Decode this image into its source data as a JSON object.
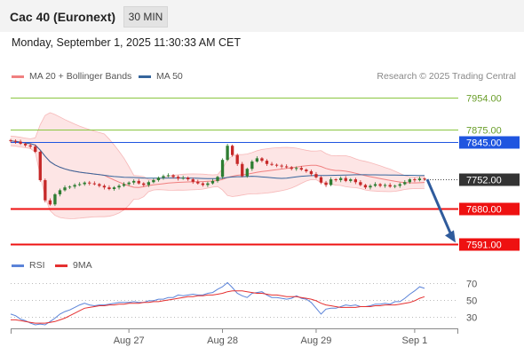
{
  "header": {
    "title": "Cac 40 (Euronext)",
    "interval": "30 MIN",
    "datetime": "Monday, September 1, 2025 11:30:33 AM CET"
  },
  "legend": {
    "ma20_label": "MA 20 + Bollinger Bands",
    "ma50_label": "MA 50",
    "credit": "Research © 2025 Trading Central"
  },
  "rsi_legend": {
    "rsi_label": "RSI",
    "ma9_label": "9MA"
  },
  "colors": {
    "bollinger": "#f08080",
    "bollinger_fill": "#fde0e0",
    "ma50": "#35659c",
    "candle_up": "#2e7d32",
    "candle_down": "#c62828",
    "resistance_green": "#8ac640",
    "resistance_blue": "#1f55e0",
    "support_red": "#ee1111",
    "last_price": "#333333",
    "rsi": "#5b83d8",
    "rsi_ma": "#e53030",
    "arrow": "#2f5b9c"
  },
  "chart_data": {
    "type": "candlestick",
    "price_range": [
      7570,
      7965
    ],
    "levels": [
      {
        "value": 7954.0,
        "label": "7954.00",
        "style": "green-line"
      },
      {
        "value": 7875.0,
        "label": "7875.00",
        "style": "green-line"
      },
      {
        "value": 7845.0,
        "label": "7845.00",
        "style": "blue-tag"
      },
      {
        "value": 7752.0,
        "label": "7752.00",
        "style": "last-price-dotted"
      },
      {
        "value": 7680.0,
        "label": "7680.00",
        "style": "red-tag"
      },
      {
        "value": 7591.0,
        "label": "7591.00",
        "style": "red-tag"
      }
    ],
    "x_ticks": [
      "Aug 27",
      "Aug 28",
      "Aug 29",
      "Sep 1"
    ],
    "x_tick_index": [
      24,
      43,
      62,
      82
    ],
    "n_bars": 85,
    "close": [
      7847,
      7845,
      7840,
      7836,
      7833,
      7820,
      7750,
      7700,
      7690,
      7715,
      7725,
      7732,
      7734,
      7738,
      7740,
      7744,
      7742,
      7740,
      7736,
      7732,
      7728,
      7732,
      7736,
      7740,
      7744,
      7748,
      7742,
      7738,
      7745,
      7750,
      7756,
      7760,
      7762,
      7758,
      7754,
      7756,
      7752,
      7746,
      7742,
      7738,
      7742,
      7748,
      7758,
      7800,
      7835,
      7812,
      7790,
      7760,
      7778,
      7796,
      7804,
      7798,
      7790,
      7788,
      7786,
      7784,
      7782,
      7778,
      7780,
      7776,
      7772,
      7765,
      7757,
      7744,
      7738,
      7752,
      7750,
      7755,
      7748,
      7752,
      7745,
      7738,
      7732,
      7736,
      7740,
      7736,
      7738,
      7734,
      7736,
      7740,
      7745,
      7752,
      7750,
      7754,
      7752
    ],
    "rsi": [
      33,
      31,
      27,
      25,
      22,
      20,
      21,
      20,
      24,
      28,
      33,
      36,
      38,
      41,
      44,
      46,
      44,
      43,
      44,
      44,
      45,
      46,
      47,
      47,
      47,
      48,
      47,
      47,
      49,
      49,
      51,
      51,
      53,
      53,
      56,
      55,
      56,
      57,
      56,
      56,
      58,
      59,
      63,
      66,
      71,
      65,
      58,
      55,
      53,
      58,
      59,
      60,
      56,
      53,
      53,
      52,
      51,
      52,
      55,
      52,
      51,
      47,
      40,
      33,
      39,
      40,
      40,
      42,
      44,
      43,
      44,
      42,
      42,
      43,
      45,
      45,
      46,
      45,
      48,
      48,
      52,
      57,
      61,
      66,
      64
    ],
    "rsi_ma": [
      26,
      26,
      25,
      24,
      23,
      22,
      22,
      22,
      23,
      24,
      26,
      28,
      31,
      34,
      37,
      40,
      41,
      42,
      43,
      43,
      44,
      44,
      45,
      45,
      46,
      46,
      46,
      47,
      47,
      48,
      48,
      49,
      50,
      51,
      52,
      53,
      54,
      54,
      55,
      55,
      56,
      56,
      57,
      58,
      60,
      61,
      61,
      61,
      60,
      59,
      58,
      58,
      57,
      56,
      56,
      55,
      54,
      54,
      54,
      53,
      52,
      51,
      49,
      46,
      44,
      43,
      42,
      41,
      41,
      41,
      41,
      42,
      42,
      42,
      43,
      43,
      44,
      44,
      44,
      45,
      46,
      47,
      49,
      52,
      54
    ],
    "rsi_levels": [
      70,
      50,
      30
    ],
    "rsi_level_labels": [
      "70",
      "50",
      "30"
    ],
    "forecast_arrow": {
      "from_price": 7752,
      "to_price": 7591
    }
  }
}
